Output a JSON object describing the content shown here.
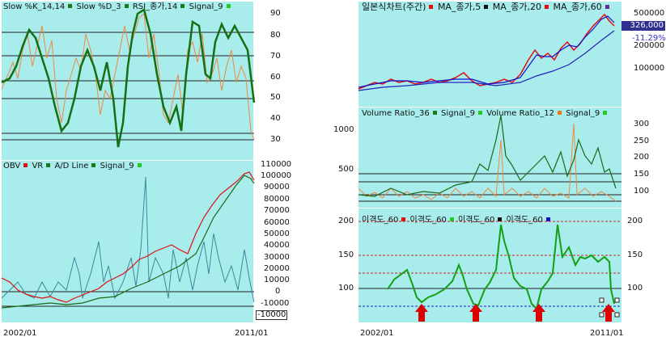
{
  "left_top": {
    "legend": [
      {
        "label": "Slow %K_14,14",
        "color": "#1a7a1a"
      },
      {
        "label": "Slow %D_3",
        "color": "#1a7a1a"
      },
      {
        "label": "RSI_종가,14",
        "color": "#1a7a1a"
      },
      {
        "label": "Signal_9",
        "color": "#1a7a1a"
      }
    ],
    "y_ticks": [
      "90",
      "80",
      "70",
      "60",
      "50",
      "40",
      "30"
    ]
  },
  "left_bottom": {
    "legend": [
      {
        "label": "OBV",
        "color": "#dd1111"
      },
      {
        "label": "VR",
        "color": "#1a7a1a"
      },
      {
        "label": "A/D Line",
        "color": "#1a7a1a"
      },
      {
        "label": "Signal_9",
        "color": "#22cc22"
      }
    ],
    "y_ticks": [
      "110000",
      "100000",
      "90000",
      "80000",
      "70000",
      "60000",
      "50000",
      "40000",
      "30000",
      "20000",
      "10000",
      "0",
      "-10000"
    ],
    "axis_marker": "-10000"
  },
  "right_top": {
    "legend": [
      {
        "label": "일본식차트(주간)",
        "color": "#dd1111"
      },
      {
        "label": "MA_종가,5",
        "color": "#111111"
      },
      {
        "label": "MA_종가,20",
        "color": "#dd1111"
      },
      {
        "label": "MA_종가,60",
        "color": "#6a2aa0"
      }
    ],
    "y_ticks": [
      "500000",
      "200000",
      "100000"
    ],
    "price_badge": "326,000",
    "change_pct": "-11.29%"
  },
  "right_mid": {
    "legend": [
      {
        "label": "Volume Ratio_36",
        "color": "#1a7a1a"
      },
      {
        "label": "Signal_9",
        "color": "#22cc22"
      },
      {
        "label": "Volume Ratio_12",
        "color": "#ee7722"
      },
      {
        "label": "Signal_9",
        "color": "#22cc22"
      }
    ],
    "y_ticks_left": [
      "1000",
      "500"
    ],
    "y_ticks_right": [
      "300",
      "250",
      "200",
      "150",
      "100"
    ]
  },
  "right_bottom": {
    "legend": [
      {
        "label": "이격도_60",
        "color": "#dd1111"
      },
      {
        "label": "이격도_60",
        "color": "#22cc22"
      },
      {
        "label": "이격도_60",
        "color": "#111111"
      },
      {
        "label": "이격도_60",
        "color": "#1111cc"
      }
    ],
    "y_ticks_left": [
      "200",
      "150",
      "100"
    ],
    "y_ticks_right": [
      "200",
      "150",
      "100"
    ]
  },
  "dates": {
    "start": "2002/01",
    "end": "2011/01"
  }
}
